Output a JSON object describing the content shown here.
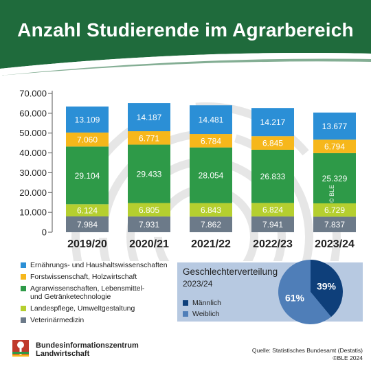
{
  "title": "Anzahl Studierende im Agrarbereich",
  "colors": {
    "header_green": "#1f6b3c",
    "ernaehrung": "#2b8fd6",
    "forst": "#f6b71b",
    "agrar": "#2e9a48",
    "landespflege": "#b5cf2f",
    "veterinaer": "#6c7a89",
    "maennlich": "#0e3f7a",
    "weiblich": "#4f7eb8",
    "gender_box": "#b7c9e1"
  },
  "chart_data": {
    "type": "bar",
    "stacked": true,
    "categories": [
      "2019/20",
      "2020/21",
      "2021/22",
      "2022/23",
      "2023/24"
    ],
    "y_ticks": [
      "0",
      "10.000",
      "20.000",
      "30.000",
      "40.000",
      "50.000",
      "60.000",
      "70.000"
    ],
    "ylim": [
      0,
      70000
    ],
    "grid": false,
    "legend_position": "bottom-left",
    "series": [
      {
        "name": "Veterinärmedizin",
        "color_key": "veterinaer",
        "values": [
          7984,
          7931,
          7862,
          7941,
          7837
        ],
        "labels": [
          "7.984",
          "7.931",
          "7.862",
          "7.941",
          "7.837"
        ]
      },
      {
        "name": "Landespflege, Umweltgestaltung",
        "color_key": "landespflege",
        "values": [
          6124,
          6805,
          6843,
          6824,
          6729
        ],
        "labels": [
          "6.124",
          "6.805",
          "6.843",
          "6.824",
          "6.729"
        ]
      },
      {
        "name": "Agrarwissenschaften, Lebensmittel- und Getränketechnologie",
        "color_key": "agrar",
        "values": [
          29104,
          29433,
          28054,
          26833,
          25329
        ],
        "labels": [
          "29.104",
          "29.433",
          "28.054",
          "26.833",
          "25.329"
        ]
      },
      {
        "name": "Forstwissenschaft, Holzwirtschaft",
        "color_key": "forst",
        "values": [
          7060,
          6771,
          6784,
          6845,
          6794
        ],
        "labels": [
          "7.060",
          "6.771",
          "6.784",
          "6.845",
          "6.794"
        ]
      },
      {
        "name": "Ernährungs- und Haushaltswissenschaften",
        "color_key": "ernaehrung",
        "values": [
          13109,
          14187,
          14481,
          14217,
          13677
        ],
        "labels": [
          "13.109",
          "14.187",
          "14.481",
          "14.217",
          "13.677"
        ]
      }
    ],
    "pie": {
      "type": "pie",
      "title": "Geschlechterverteilung",
      "subtitle": "2023/24",
      "slices": [
        {
          "name": "Männlich",
          "value": 39,
          "label": "39%",
          "color_key": "maennlich"
        },
        {
          "name": "Weiblich",
          "value": 61,
          "label": "61%",
          "color_key": "weiblich"
        }
      ]
    }
  },
  "legend": {
    "items": [
      {
        "label": "Ernährungs- und Haushaltswissenschaften",
        "color_key": "ernaehrung"
      },
      {
        "label": "Forstwissenschaft, Holzwirtschaft",
        "color_key": "forst"
      },
      {
        "label": "Agrarwissenschaften, Lebensmittel-\nund Getränketechnologie",
        "color_key": "agrar"
      },
      {
        "label": "Landespflege, Umweltgestaltung",
        "color_key": "landespflege"
      },
      {
        "label": "Veterinärmedizin",
        "color_key": "veterinaer"
      }
    ]
  },
  "gender": {
    "title": "Geschlechterverteilung",
    "year": "2023/24",
    "male_label": "Männlich",
    "female_label": "Weiblich"
  },
  "watermark": "© BLE",
  "footer": {
    "org_line1": "Bundesinformationszentrum",
    "org_line2": "Landwirtschaft",
    "source_line1": "Quelle: Statistisches Bundesamt (Destatis)",
    "source_line2": "©BLE 2024"
  }
}
